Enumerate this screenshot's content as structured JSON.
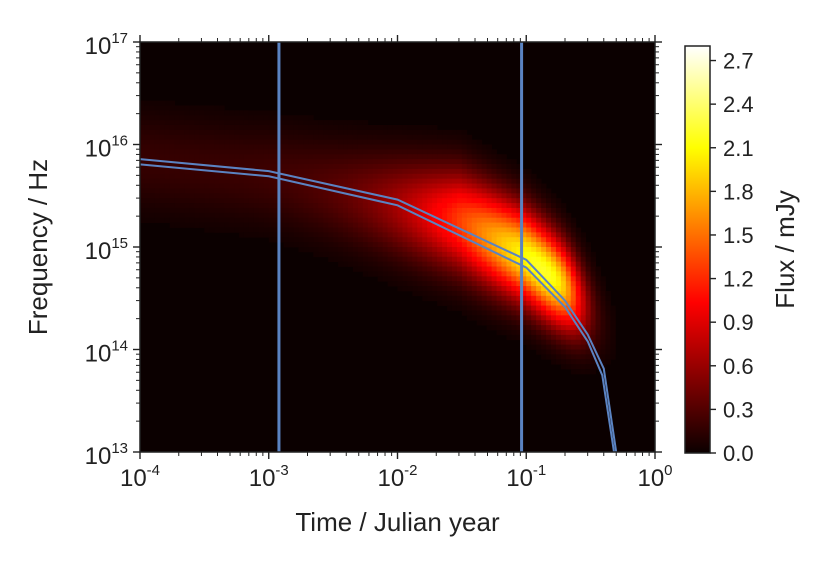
{
  "chart_data": {
    "type": "heatmap",
    "xlabel": "Time / Julian year",
    "ylabel": "Frequency / Hz",
    "colorbar_label": "Flux / mJy",
    "xscale": "log",
    "yscale": "log",
    "xlim": [
      0.0001,
      1
    ],
    "ylim": [
      10000000000000.0,
      1e+17
    ],
    "x_ticks": [
      {
        "base": "10",
        "exp": "-4",
        "value": 0.0001
      },
      {
        "base": "10",
        "exp": "-3",
        "value": 0.001
      },
      {
        "base": "10",
        "exp": "-2",
        "value": 0.01
      },
      {
        "base": "10",
        "exp": "-1",
        "value": 0.1
      },
      {
        "base": "10",
        "exp": "0",
        "value": 1
      }
    ],
    "y_ticks": [
      {
        "base": "10",
        "exp": "13",
        "value": 10000000000000.0
      },
      {
        "base": "10",
        "exp": "14",
        "value": 100000000000000.0
      },
      {
        "base": "10",
        "exp": "15",
        "value": 1000000000000000.0
      },
      {
        "base": "10",
        "exp": "16",
        "value": 1e+16
      },
      {
        "base": "10",
        "exp": "17",
        "value": 1e+17
      }
    ],
    "colorbar": {
      "min": 0.0,
      "max": 2.8,
      "ticks": [
        "0.0",
        "0.3",
        "0.6",
        "0.9",
        "1.2",
        "1.5",
        "1.8",
        "2.1",
        "2.4",
        "2.7"
      ],
      "colormap": "hot"
    },
    "peak_ridge": [
      {
        "t": 0.0001,
        "nu": 7000000000000000.0
      },
      {
        "t": 0.001,
        "nu": 5000000000000000.0
      },
      {
        "t": 0.01,
        "nu": 2500000000000000.0
      },
      {
        "t": 0.03,
        "nu": 1800000000000000.0
      },
      {
        "t": 0.1,
        "nu": 800000000000000.0
      },
      {
        "t": 0.2,
        "nu": 400000000000000.0
      },
      {
        "t": 0.3,
        "nu": 250000000000000.0
      }
    ],
    "peak_flux_max": 2.8,
    "curves": [
      {
        "points": [
          {
            "t": 0.0001,
            "nu": 7200000000000000.0
          },
          {
            "t": 0.001,
            "nu": 5500000000000000.0
          },
          {
            "t": 0.01,
            "nu": 2900000000000000.0
          },
          {
            "t": 0.1,
            "nu": 750000000000000.0
          },
          {
            "t": 0.2,
            "nu": 300000000000000.0
          },
          {
            "t": 0.3,
            "nu": 140000000000000.0
          },
          {
            "t": 0.4,
            "nu": 65000000000000.0
          },
          {
            "t": 0.5,
            "nu": 10000000000000.0
          }
        ]
      },
      {
        "points": [
          {
            "t": 0.0001,
            "nu": 6400000000000000.0
          },
          {
            "t": 0.001,
            "nu": 4900000000000000.0
          },
          {
            "t": 0.01,
            "nu": 2550000000000000.0
          },
          {
            "t": 0.1,
            "nu": 630000000000000.0
          },
          {
            "t": 0.2,
            "nu": 260000000000000.0
          },
          {
            "t": 0.3,
            "nu": 120000000000000.0
          },
          {
            "t": 0.39,
            "nu": 56000000000000.0
          },
          {
            "t": 0.48,
            "nu": 10000000000000.0
          }
        ]
      }
    ],
    "vlines": [
      0.0012,
      0.092
    ],
    "line_color": "#5b83c2"
  }
}
